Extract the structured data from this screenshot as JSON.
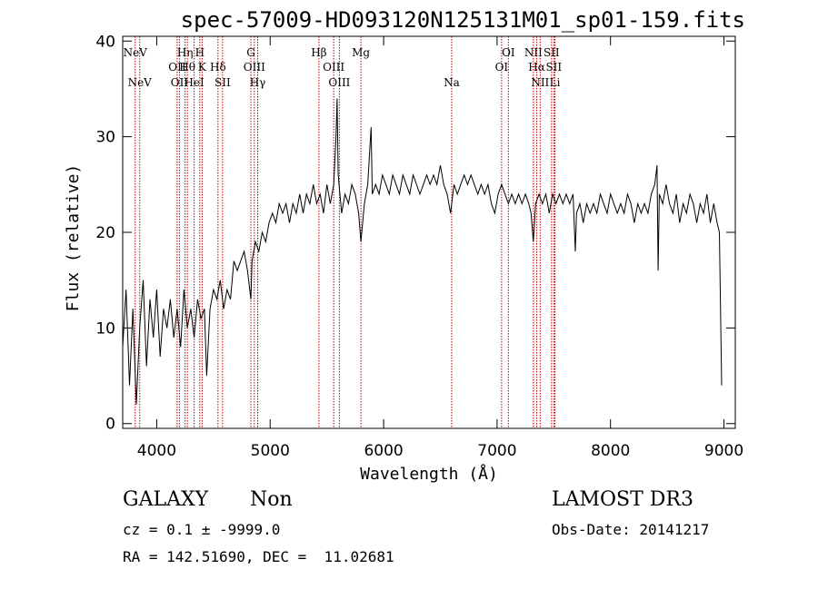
{
  "chart_data": {
    "type": "line",
    "title": "spec-57009-HD093120N125131M01_sp01-159.fits",
    "xlabel": "Wavelength (Å)",
    "ylabel": "Flux (relative)",
    "xlim": [
      3700,
      9100
    ],
    "ylim": [
      -0.5,
      40.5
    ],
    "xticks": [
      4000,
      5000,
      6000,
      7000,
      8000,
      9000
    ],
    "yticks": [
      0,
      10,
      20,
      30,
      40
    ],
    "series": [
      {
        "points": [
          [
            3700,
            8
          ],
          [
            3730,
            14
          ],
          [
            3760,
            4
          ],
          [
            3790,
            12
          ],
          [
            3820,
            2
          ],
          [
            3850,
            10
          ],
          [
            3880,
            15
          ],
          [
            3910,
            6
          ],
          [
            3940,
            13
          ],
          [
            3970,
            9
          ],
          [
            4000,
            14
          ],
          [
            4030,
            7
          ],
          [
            4060,
            12
          ],
          [
            4090,
            10
          ],
          [
            4120,
            13
          ],
          [
            4150,
            9
          ],
          [
            4180,
            12
          ],
          [
            4210,
            8
          ],
          [
            4240,
            14
          ],
          [
            4270,
            10
          ],
          [
            4300,
            12
          ],
          [
            4330,
            9
          ],
          [
            4360,
            13
          ],
          [
            4390,
            11
          ],
          [
            4420,
            12
          ],
          [
            4440,
            5
          ],
          [
            4470,
            12
          ],
          [
            4500,
            14
          ],
          [
            4530,
            13
          ],
          [
            4560,
            15
          ],
          [
            4590,
            12
          ],
          [
            4620,
            14
          ],
          [
            4650,
            13
          ],
          [
            4680,
            17
          ],
          [
            4710,
            16
          ],
          [
            4740,
            17
          ],
          [
            4770,
            18
          ],
          [
            4800,
            16
          ],
          [
            4830,
            13
          ],
          [
            4840,
            17
          ],
          [
            4870,
            19
          ],
          [
            4900,
            18
          ],
          [
            4930,
            20
          ],
          [
            4960,
            19
          ],
          [
            4990,
            21
          ],
          [
            5020,
            22
          ],
          [
            5050,
            21
          ],
          [
            5080,
            23
          ],
          [
            5110,
            22
          ],
          [
            5140,
            23
          ],
          [
            5170,
            21
          ],
          [
            5200,
            23
          ],
          [
            5230,
            22
          ],
          [
            5260,
            24
          ],
          [
            5290,
            22
          ],
          [
            5320,
            24
          ],
          [
            5350,
            23
          ],
          [
            5380,
            25
          ],
          [
            5410,
            23
          ],
          [
            5440,
            24
          ],
          [
            5470,
            22
          ],
          [
            5500,
            25
          ],
          [
            5530,
            23
          ],
          [
            5560,
            25
          ],
          [
            5580,
            30
          ],
          [
            5590,
            34
          ],
          [
            5600,
            26
          ],
          [
            5630,
            22
          ],
          [
            5660,
            24
          ],
          [
            5690,
            23
          ],
          [
            5720,
            25
          ],
          [
            5750,
            24
          ],
          [
            5780,
            22
          ],
          [
            5800,
            19
          ],
          [
            5830,
            23
          ],
          [
            5860,
            25
          ],
          [
            5890,
            31
          ],
          [
            5900,
            24
          ],
          [
            5930,
            25
          ],
          [
            5960,
            24
          ],
          [
            5990,
            26
          ],
          [
            6020,
            25
          ],
          [
            6050,
            24
          ],
          [
            6080,
            26
          ],
          [
            6110,
            25
          ],
          [
            6140,
            24
          ],
          [
            6170,
            26
          ],
          [
            6200,
            25
          ],
          [
            6230,
            24
          ],
          [
            6260,
            26
          ],
          [
            6290,
            25
          ],
          [
            6320,
            24
          ],
          [
            6350,
            25
          ],
          [
            6380,
            26
          ],
          [
            6410,
            25
          ],
          [
            6440,
            26
          ],
          [
            6470,
            25
          ],
          [
            6500,
            27
          ],
          [
            6530,
            25
          ],
          [
            6560,
            24
          ],
          [
            6590,
            22
          ],
          [
            6620,
            25
          ],
          [
            6650,
            24
          ],
          [
            6680,
            25
          ],
          [
            6710,
            26
          ],
          [
            6740,
            25
          ],
          [
            6770,
            26
          ],
          [
            6800,
            25
          ],
          [
            6830,
            24
          ],
          [
            6860,
            25
          ],
          [
            6890,
            24
          ],
          [
            6920,
            25
          ],
          [
            6950,
            23
          ],
          [
            6980,
            22
          ],
          [
            7010,
            24
          ],
          [
            7040,
            25
          ],
          [
            7070,
            24
          ],
          [
            7100,
            23
          ],
          [
            7130,
            24
          ],
          [
            7160,
            23
          ],
          [
            7190,
            24
          ],
          [
            7220,
            23
          ],
          [
            7250,
            24
          ],
          [
            7280,
            23
          ],
          [
            7300,
            22
          ],
          [
            7320,
            19
          ],
          [
            7340,
            23
          ],
          [
            7370,
            24
          ],
          [
            7400,
            23
          ],
          [
            7430,
            24
          ],
          [
            7460,
            22
          ],
          [
            7490,
            24
          ],
          [
            7520,
            23
          ],
          [
            7550,
            24
          ],
          [
            7580,
            23
          ],
          [
            7610,
            24
          ],
          [
            7640,
            23
          ],
          [
            7670,
            24
          ],
          [
            7690,
            18
          ],
          [
            7700,
            22
          ],
          [
            7730,
            23
          ],
          [
            7760,
            21
          ],
          [
            7790,
            23
          ],
          [
            7820,
            22
          ],
          [
            7850,
            23
          ],
          [
            7880,
            22
          ],
          [
            7910,
            24
          ],
          [
            7940,
            23
          ],
          [
            7970,
            22
          ],
          [
            8000,
            24
          ],
          [
            8030,
            23
          ],
          [
            8060,
            22
          ],
          [
            8090,
            23
          ],
          [
            8120,
            22
          ],
          [
            8150,
            24
          ],
          [
            8180,
            23
          ],
          [
            8210,
            21
          ],
          [
            8240,
            23
          ],
          [
            8270,
            22
          ],
          [
            8300,
            23
          ],
          [
            8330,
            22
          ],
          [
            8360,
            24
          ],
          [
            8390,
            25
          ],
          [
            8410,
            27
          ],
          [
            8420,
            16
          ],
          [
            8430,
            24
          ],
          [
            8460,
            23
          ],
          [
            8490,
            25
          ],
          [
            8520,
            23
          ],
          [
            8550,
            22
          ],
          [
            8580,
            24
          ],
          [
            8610,
            21
          ],
          [
            8640,
            23
          ],
          [
            8670,
            22
          ],
          [
            8700,
            24
          ],
          [
            8730,
            23
          ],
          [
            8760,
            21
          ],
          [
            8790,
            23
          ],
          [
            8820,
            22
          ],
          [
            8850,
            24
          ],
          [
            8880,
            21
          ],
          [
            8910,
            23
          ],
          [
            8940,
            21
          ],
          [
            8960,
            20
          ],
          [
            8980,
            4
          ]
        ]
      }
    ],
    "lines": [
      {
        "x": 3810,
        "labels": [
          "NeV"
        ],
        "row": "top"
      },
      {
        "x": 3850,
        "labels": [
          "NeV"
        ],
        "row": "bottom"
      },
      {
        "x": 4180,
        "labels": [
          "OII"
        ],
        "row": "mid"
      },
      {
        "x": 4200,
        "labels": [
          "OII"
        ],
        "row": "bottom"
      },
      {
        "x": 4250,
        "labels": [
          "Hη"
        ],
        "row": "top"
      },
      {
        "x": 4270,
        "labels": [
          "Hθ"
        ],
        "row": "mid"
      },
      {
        "x": 4330,
        "labels": [
          "HeI"
        ],
        "row": "bottom"
      },
      {
        "x": 4380,
        "labels": [
          "H"
        ],
        "row": "top"
      },
      {
        "x": 4400,
        "labels": [
          "K"
        ],
        "row": "mid"
      },
      {
        "x": 4540,
        "labels": [
          "Hδ"
        ],
        "row": "mid"
      },
      {
        "x": 4580,
        "labels": [
          "SII"
        ],
        "row": "bottom"
      },
      {
        "x": 4830,
        "labels": [
          "G"
        ],
        "row": "top"
      },
      {
        "x": 4860,
        "labels": [
          "OIII"
        ],
        "row": "mid"
      },
      {
        "x": 4890,
        "labels": [
          "Hγ"
        ],
        "row": "bottom"
      },
      {
        "x": 5430,
        "labels": [
          "Hβ"
        ],
        "row": "top"
      },
      {
        "x": 5560,
        "labels": [
          "OIII"
        ],
        "row": "mid"
      },
      {
        "x": 5610,
        "labels": [
          "OIII"
        ],
        "row": "bottom"
      },
      {
        "x": 5800,
        "labels": [
          "Mg"
        ],
        "row": "top"
      },
      {
        "x": 6600,
        "labels": [
          "Na"
        ],
        "row": "bottom"
      },
      {
        "x": 7040,
        "labels": [
          "OI"
        ],
        "row": "mid"
      },
      {
        "x": 7100,
        "labels": [
          "OI"
        ],
        "row": "top"
      },
      {
        "x": 7320,
        "labels": [
          "NII"
        ],
        "row": "top"
      },
      {
        "x": 7350,
        "labels": [
          "Hα"
        ],
        "row": "mid"
      },
      {
        "x": 7380,
        "labels": [
          "NII"
        ],
        "row": "bottom"
      },
      {
        "x": 7480,
        "labels": [
          "SII"
        ],
        "row": "top"
      },
      {
        "x": 7500,
        "labels": [
          "SII"
        ],
        "row": "mid"
      },
      {
        "x": 7510,
        "labels": [
          "Li"
        ],
        "row": "bottom"
      }
    ]
  },
  "info": {
    "type_label": "GALAXY",
    "subtype": "Non",
    "survey": "LAMOST DR3",
    "cz": "cz = 0.1 ± -9999.0",
    "obs_date": "Obs-Date: 20141217",
    "radec": "RA = 142.51690, DEC =  11.02681"
  },
  "colors": {
    "axis": "#000000",
    "line_marker": "#c00000",
    "spectrum": "#000000"
  }
}
